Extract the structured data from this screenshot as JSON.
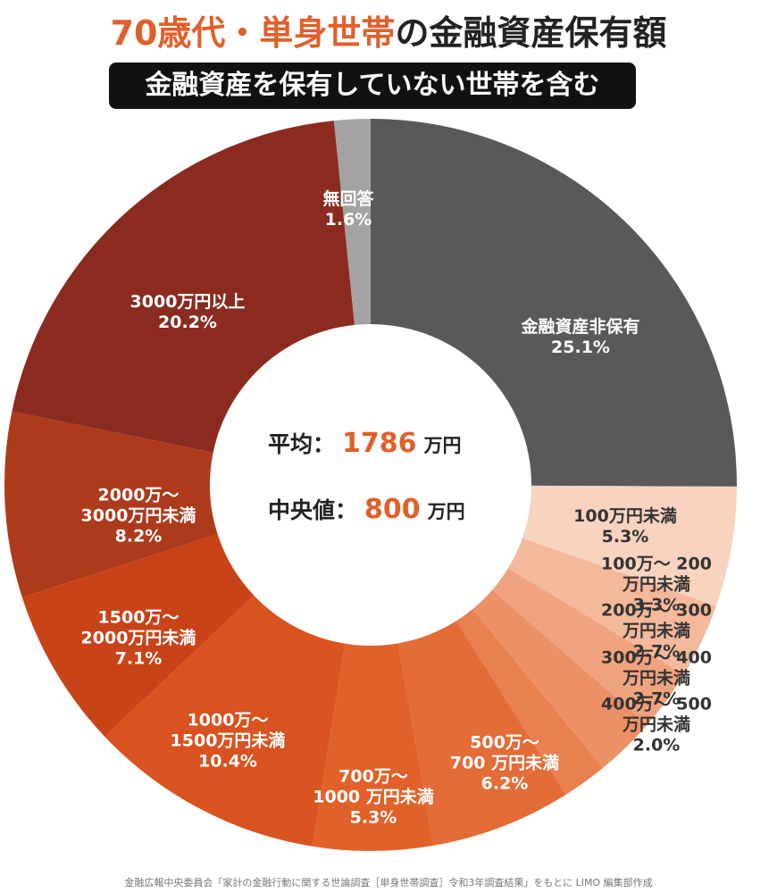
{
  "chart_data": {
    "type": "pie",
    "title": {
      "highlight": "70歳代・単身世帯",
      "rest": "の金融資産保有額"
    },
    "subtitle": "金融資産を保有していない世帯を含む",
    "categories": [
      "金融資産非保有",
      "100万円未満",
      "100万～ 200万円未満",
      "200万～ 300万円未満",
      "300万～ 400万円未満",
      "400万～ 500万円未満",
      "500万～\n700 万円未満",
      "700万～\n1000 万円未満",
      "1000万～\n1500万円未満",
      "1500万～\n2000万円未満",
      "2000万～\n3000万円未満",
      "3000万円以上",
      "無回答"
    ],
    "values": [
      25.1,
      5.3,
      3.3,
      2.7,
      2.7,
      2.0,
      6.2,
      5.3,
      10.4,
      7.1,
      8.2,
      20.2,
      1.6
    ],
    "value_labels": [
      "25.1%",
      "5.3%",
      "3.3%",
      "2.7%",
      "2.7%",
      "2.0%",
      "6.2%",
      "5.3%",
      "10.4%",
      "7.1%",
      "8.2%",
      "20.2%",
      "1.6%"
    ],
    "colors": [
      "#595959",
      "#f8d3c0",
      "#f4b89b",
      "#f0a37f",
      "#ec9166",
      "#e88050",
      "#e36c37",
      "#e0622a",
      "#d8531f",
      "#c84418",
      "#ae3a1c",
      "#8b2b20",
      "#a3a3a3"
    ],
    "donut": true,
    "center": {
      "mean_label": "平均：",
      "mean": 1786,
      "median_label": "中央値：",
      "median": 800,
      "unit": "万円"
    },
    "source": "金融広報中央委員会「家計の金融行動に関する世論調査［単身世帯調査］令和3年調査結果」をもとに LIMO 編集部作成"
  }
}
